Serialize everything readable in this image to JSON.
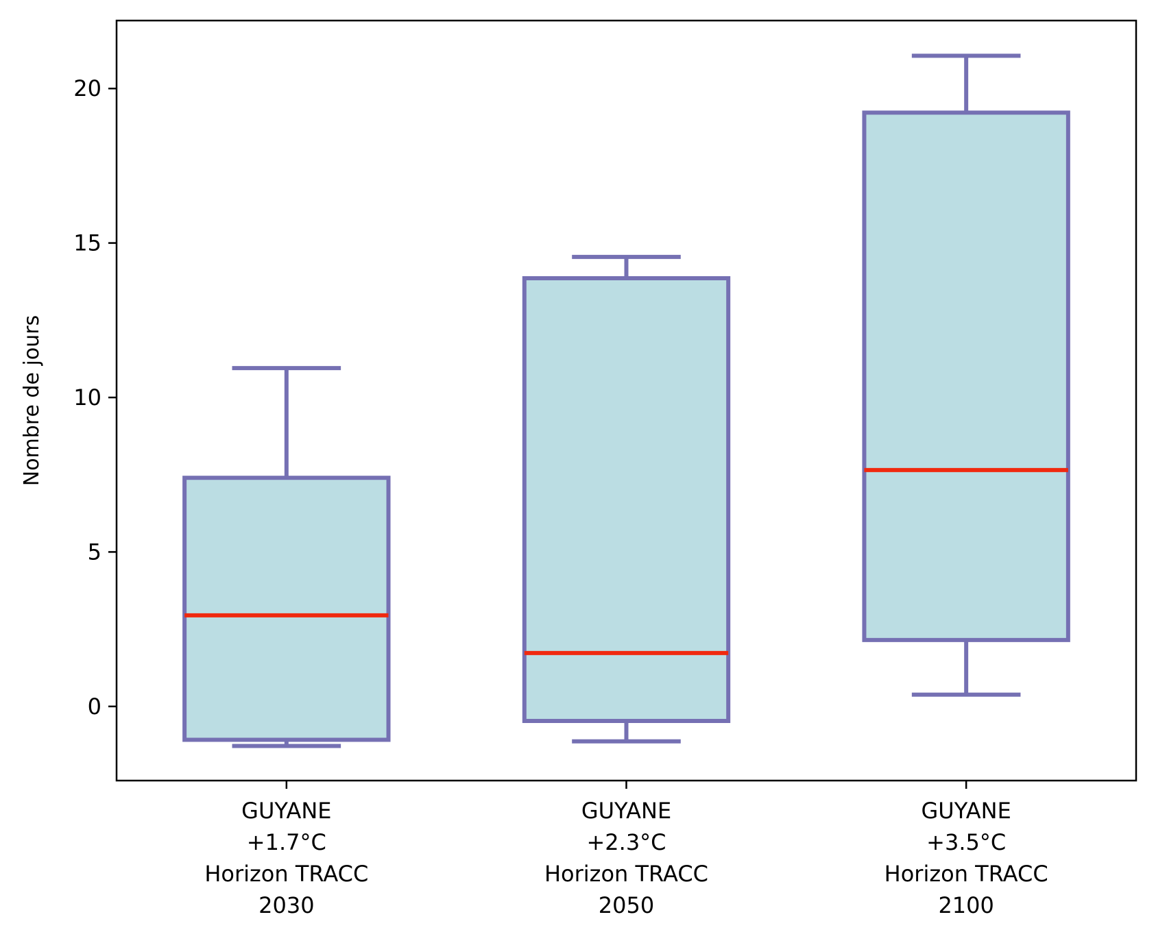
{
  "chart_data": {
    "type": "box",
    "title": "",
    "xlabel": "",
    "ylabel": "Nombre de jours",
    "ylim": [
      -2.4,
      22.2
    ],
    "yticks": [
      0,
      5,
      10,
      15,
      20
    ],
    "grid": false,
    "categories": [
      [
        "GUYANE",
        "+1.7°C",
        "Horizon TRACC",
        "2030"
      ],
      [
        "GUYANE",
        "+2.3°C",
        "Horizon TRACC",
        "2050"
      ],
      [
        "GUYANE",
        "+3.5°C",
        "Horizon TRACC",
        "2100"
      ]
    ],
    "boxes": [
      {
        "whisker_low": -1.28,
        "q1": -1.08,
        "median": 2.95,
        "q3": 7.4,
        "whisker_high": 10.95
      },
      {
        "whisker_low": -1.13,
        "q1": -0.47,
        "median": 1.73,
        "q3": 13.86,
        "whisker_high": 14.55
      },
      {
        "whisker_low": 0.38,
        "q1": 2.15,
        "median": 7.65,
        "q3": 19.22,
        "whisker_high": 21.06
      }
    ],
    "colors": {
      "box_edge": "#7570b3",
      "box_fill": "#bbdde3",
      "median": "#f0290f",
      "axis": "#000000"
    }
  }
}
